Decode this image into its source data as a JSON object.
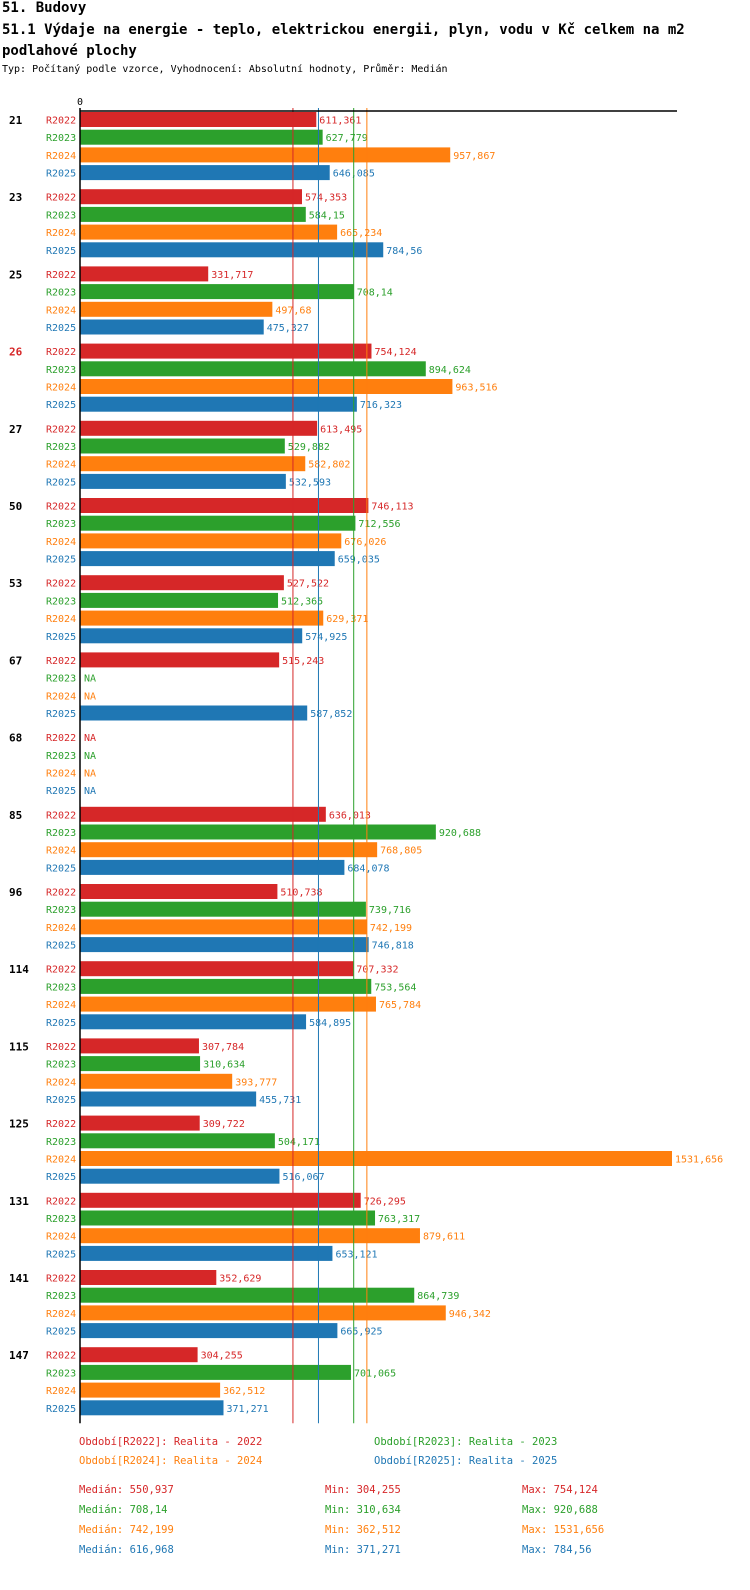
{
  "header": {
    "title": "51. Budovy",
    "subtitle": "51.1 Výdaje na energie - teplo, elektrickou energii, plyn, vodu v Kč celkem na m2 podlahové plochy",
    "type_line": "Typ: Počítaný podle vzorce, Vyhodnocení: Absolutní hodnoty, Průměr: Medián"
  },
  "colors": {
    "R2022": "#d62728",
    "R2023": "#2ca02c",
    "R2024": "#ff7f0e",
    "R2025": "#1f77b4",
    "highlight": "#d62728"
  },
  "chart_data": {
    "type": "bar",
    "orientation": "horizontal",
    "axis_zero_label": "0",
    "na_label": "NA",
    "highlighted_category": "26",
    "series_names": [
      "R2022",
      "R2023",
      "R2024",
      "R2025"
    ],
    "categories": [
      "21",
      "23",
      "25",
      "26",
      "27",
      "50",
      "53",
      "67",
      "68",
      "85",
      "96",
      "114",
      "115",
      "125",
      "131",
      "141",
      "147"
    ],
    "series": [
      {
        "name": "R2022",
        "values": [
          611.361,
          574.353,
          331.717,
          754.124,
          613.495,
          746.113,
          527.522,
          515.243,
          null,
          636.013,
          510.738,
          707.332,
          307.784,
          309.722,
          726.295,
          352.629,
          304.255
        ],
        "labels": [
          "611,361",
          "574,353",
          "331,717",
          "754,124",
          "613,495",
          "746,113",
          "527,522",
          "515,243",
          "NA",
          "636,013",
          "510,738",
          "707,332",
          "307,784",
          "309,722",
          "726,295",
          "352,629",
          "304,255"
        ]
      },
      {
        "name": "R2023",
        "values": [
          627.779,
          584.15,
          708.14,
          894.624,
          529.882,
          712.556,
          512.365,
          null,
          null,
          920.688,
          739.716,
          753.564,
          310.634,
          504.171,
          763.317,
          864.739,
          701.065
        ],
        "labels": [
          "627,779",
          "584,15",
          "708,14",
          "894,624",
          "529,882",
          "712,556",
          "512,365",
          "NA",
          "NA",
          "920,688",
          "739,716",
          "753,564",
          "310,634",
          "504,171",
          "763,317",
          "864,739",
          "701,065"
        ]
      },
      {
        "name": "R2024",
        "values": [
          957.867,
          665.234,
          497.68,
          963.516,
          582.802,
          676.026,
          629.371,
          null,
          null,
          768.805,
          742.199,
          765.784,
          393.777,
          1531.656,
          879.611,
          946.342,
          362.512
        ],
        "labels": [
          "957,867",
          "665,234",
          "497,68",
          "963,516",
          "582,802",
          "676,026",
          "629,371",
          "NA",
          "NA",
          "768,805",
          "742,199",
          "765,784",
          "393,777",
          "1531,656",
          "879,611",
          "946,342",
          "362,512"
        ]
      },
      {
        "name": "R2025",
        "values": [
          646.085,
          784.56,
          475.327,
          716.323,
          532.593,
          659.035,
          574.925,
          587.852,
          null,
          684.078,
          746.818,
          584.895,
          455.731,
          516.067,
          653.121,
          665.925,
          371.271
        ],
        "labels": [
          "646,085",
          "784,56",
          "475,327",
          "716,323",
          "532,593",
          "659,035",
          "574,925",
          "587,852",
          "NA",
          "684,078",
          "746,818",
          "584,895",
          "455,731",
          "516,067",
          "653,121",
          "665,925",
          "371,271"
        ]
      }
    ],
    "medians": {
      "R2022": 550.937,
      "R2023": 708.14,
      "R2024": 742.199,
      "R2025": 616.968
    },
    "xlim": [
      0,
      1531.656
    ]
  },
  "legend": {
    "r2022": "Období[R2022]: Realita - 2022",
    "r2023": "Období[R2023]: Realita - 2023",
    "r2024": "Období[R2024]: Realita - 2024",
    "r2025": "Období[R2025]: Realita - 2025"
  },
  "stats": [
    {
      "median": "Medián: 550,937",
      "min": "Min: 304,255",
      "max": "Max: 754,124"
    },
    {
      "median": "Medián: 708,14",
      "min": "Min: 310,634",
      "max": "Max: 920,688"
    },
    {
      "median": "Medián: 742,199",
      "min": "Min: 362,512",
      "max": "Max: 1531,656"
    },
    {
      "median": "Medián: 616,968",
      "min": "Min: 371,271",
      "max": "Max: 784,56"
    }
  ]
}
